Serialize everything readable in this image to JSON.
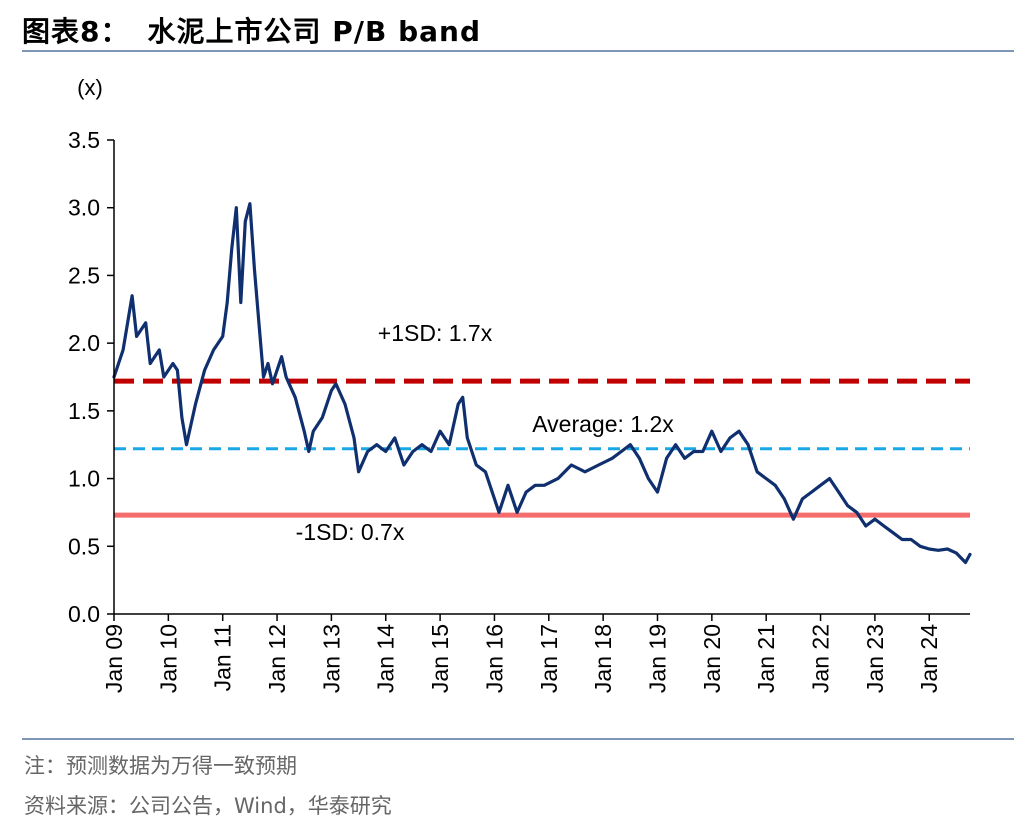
{
  "figure": {
    "label": "图表8：",
    "title": "水泥上市公司 P/B band"
  },
  "notes": {
    "note": "注：预测数据为万得一致预期",
    "source": "资料来源：公司公告，Wind，华泰研究"
  },
  "chart_data": {
    "type": "line",
    "title": "水泥上市公司 P/B band",
    "ylabel": "(x)",
    "ylim": [
      0,
      3.5
    ],
    "yticks": [
      "0.0",
      "0.5",
      "1.0",
      "1.5",
      "2.0",
      "2.5",
      "3.0",
      "3.5"
    ],
    "x_range": [
      "2009-01",
      "2024-10"
    ],
    "xticks": [
      "Jan 09",
      "Jan 10",
      "Jan 11",
      "Jan 12",
      "Jan 13",
      "Jan 14",
      "Jan 15",
      "Jan 16",
      "Jan 17",
      "Jan 18",
      "Jan 19",
      "Jan 20",
      "Jan 21",
      "Jan 22",
      "Jan 23",
      "Jan 24"
    ],
    "grid": false,
    "series": [
      {
        "name": "",
        "color": "#0f2f6e",
        "points": [
          [
            "2009-01",
            1.75
          ],
          [
            "2009-03",
            1.95
          ],
          [
            "2009-05",
            2.35
          ],
          [
            "2009-06",
            2.05
          ],
          [
            "2009-08",
            2.15
          ],
          [
            "2009-09",
            1.85
          ],
          [
            "2009-11",
            1.95
          ],
          [
            "2009-12",
            1.75
          ],
          [
            "2010-02",
            1.85
          ],
          [
            "2010-03",
            1.8
          ],
          [
            "2010-04",
            1.45
          ],
          [
            "2010-05",
            1.25
          ],
          [
            "2010-07",
            1.55
          ],
          [
            "2010-09",
            1.8
          ],
          [
            "2010-11",
            1.95
          ],
          [
            "2011-01",
            2.05
          ],
          [
            "2011-02",
            2.3
          ],
          [
            "2011-03",
            2.7
          ],
          [
            "2011-04",
            3.0
          ],
          [
            "2011-05",
            2.3
          ],
          [
            "2011-06",
            2.9
          ],
          [
            "2011-07",
            3.03
          ],
          [
            "2011-08",
            2.55
          ],
          [
            "2011-09",
            2.15
          ],
          [
            "2011-10",
            1.75
          ],
          [
            "2011-11",
            1.85
          ],
          [
            "2011-12",
            1.7
          ],
          [
            "2012-02",
            1.9
          ],
          [
            "2012-03",
            1.75
          ],
          [
            "2012-05",
            1.6
          ],
          [
            "2012-07",
            1.35
          ],
          [
            "2012-08",
            1.2
          ],
          [
            "2012-09",
            1.35
          ],
          [
            "2012-11",
            1.45
          ],
          [
            "2013-01",
            1.65
          ],
          [
            "2013-02",
            1.7
          ],
          [
            "2013-04",
            1.55
          ],
          [
            "2013-06",
            1.3
          ],
          [
            "2013-07",
            1.05
          ],
          [
            "2013-09",
            1.2
          ],
          [
            "2013-11",
            1.25
          ],
          [
            "2014-01",
            1.2
          ],
          [
            "2014-03",
            1.3
          ],
          [
            "2014-05",
            1.1
          ],
          [
            "2014-07",
            1.2
          ],
          [
            "2014-09",
            1.25
          ],
          [
            "2014-11",
            1.2
          ],
          [
            "2015-01",
            1.35
          ],
          [
            "2015-03",
            1.25
          ],
          [
            "2015-05",
            1.55
          ],
          [
            "2015-06",
            1.6
          ],
          [
            "2015-07",
            1.3
          ],
          [
            "2015-09",
            1.1
          ],
          [
            "2015-11",
            1.05
          ],
          [
            "2016-02",
            0.75
          ],
          [
            "2016-04",
            0.95
          ],
          [
            "2016-06",
            0.75
          ],
          [
            "2016-08",
            0.9
          ],
          [
            "2016-10",
            0.95
          ],
          [
            "2016-12",
            0.95
          ],
          [
            "2017-03",
            1.0
          ],
          [
            "2017-06",
            1.1
          ],
          [
            "2017-09",
            1.05
          ],
          [
            "2017-12",
            1.1
          ],
          [
            "2018-03",
            1.15
          ],
          [
            "2018-05",
            1.2
          ],
          [
            "2018-07",
            1.25
          ],
          [
            "2018-09",
            1.15
          ],
          [
            "2018-11",
            1.0
          ],
          [
            "2019-01",
            0.9
          ],
          [
            "2019-03",
            1.15
          ],
          [
            "2019-05",
            1.25
          ],
          [
            "2019-07",
            1.15
          ],
          [
            "2019-09",
            1.2
          ],
          [
            "2019-11",
            1.2
          ],
          [
            "2020-01",
            1.35
          ],
          [
            "2020-03",
            1.2
          ],
          [
            "2020-05",
            1.3
          ],
          [
            "2020-07",
            1.35
          ],
          [
            "2020-09",
            1.25
          ],
          [
            "2020-11",
            1.05
          ],
          [
            "2021-01",
            1.0
          ],
          [
            "2021-03",
            0.95
          ],
          [
            "2021-05",
            0.85
          ],
          [
            "2021-07",
            0.7
          ],
          [
            "2021-09",
            0.85
          ],
          [
            "2021-11",
            0.9
          ],
          [
            "2022-01",
            0.95
          ],
          [
            "2022-03",
            1.0
          ],
          [
            "2022-05",
            0.9
          ],
          [
            "2022-07",
            0.8
          ],
          [
            "2022-09",
            0.75
          ],
          [
            "2022-11",
            0.65
          ],
          [
            "2023-01",
            0.7
          ],
          [
            "2023-03",
            0.65
          ],
          [
            "2023-05",
            0.6
          ],
          [
            "2023-07",
            0.55
          ],
          [
            "2023-09",
            0.55
          ],
          [
            "2023-11",
            0.5
          ],
          [
            "2024-01",
            0.48
          ],
          [
            "2024-03",
            0.47
          ],
          [
            "2024-05",
            0.48
          ],
          [
            "2024-07",
            0.45
          ],
          [
            "2024-09",
            0.38
          ],
          [
            "2024-10",
            0.44
          ]
        ]
      }
    ],
    "bands": [
      {
        "label": "+1SD: 1.7x",
        "value": 1.72,
        "color": "#c00000",
        "style": "dashed"
      },
      {
        "label": "Average: 1.2x",
        "value": 1.22,
        "color": "#1aa7e6",
        "style": "dashed"
      },
      {
        "label": "-1SD: 0.7x",
        "value": 0.73,
        "color": "#f56c6c",
        "style": "solid"
      }
    ]
  }
}
